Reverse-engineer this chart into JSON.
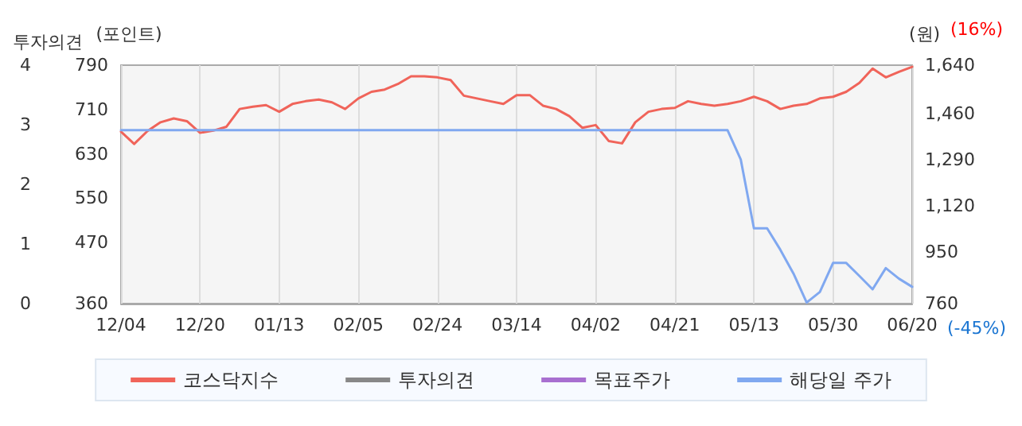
{
  "chart_data": {
    "type": "line",
    "categories": [
      "12/04",
      null,
      null,
      null,
      null,
      null,
      "12/20",
      null,
      null,
      null,
      null,
      null,
      "01/13",
      null,
      null,
      null,
      null,
      null,
      "02/05",
      null,
      null,
      null,
      null,
      null,
      "02/24",
      null,
      null,
      null,
      null,
      null,
      "03/14",
      null,
      null,
      null,
      null,
      null,
      "04/02",
      null,
      null,
      null,
      null,
      null,
      "04/21",
      null,
      null,
      null,
      null,
      null,
      "05/13",
      null,
      null,
      null,
      null,
      null,
      "05/30",
      null,
      null,
      null,
      null,
      null,
      "06/20"
    ],
    "series": [
      {
        "name": "코스닥지수",
        "color": "#f0645a",
        "axis": "y",
        "values": [
          670,
          648,
          671,
          687,
          694,
          689,
          668,
          672,
          679,
          711,
          715,
          718,
          706,
          720,
          725,
          728,
          723,
          711,
          730,
          742,
          746,
          756,
          770,
          770,
          768,
          763,
          735,
          730,
          725,
          720,
          736,
          736,
          717,
          711,
          698,
          677,
          682,
          653,
          649,
          687,
          706,
          711,
          713,
          725,
          720,
          717,
          720,
          725,
          733,
          725,
          711,
          717,
          720,
          730,
          733,
          742,
          758,
          784,
          768,
          778,
          787
        ]
      },
      {
        "name": "투자의견",
        "color": "#888888",
        "axis": "y3",
        "values": [
          null,
          null,
          null,
          null,
          null,
          null,
          null,
          null,
          null,
          null,
          null,
          null,
          null,
          null,
          null,
          null,
          null,
          null,
          null,
          null,
          null,
          null,
          null,
          null,
          null,
          null,
          null,
          null,
          null,
          null,
          null,
          null,
          null,
          null,
          null,
          null,
          null,
          null,
          null,
          null,
          null,
          null,
          null,
          null,
          null,
          null,
          null,
          null,
          null,
          null,
          null,
          null,
          null,
          null,
          null,
          null,
          null,
          null,
          null,
          null,
          null
        ]
      },
      {
        "name": "목표주가",
        "color": "#a86fd0",
        "axis": "y2",
        "values": [
          null,
          null,
          null,
          null,
          null,
          null,
          null,
          null,
          null,
          null,
          null,
          null,
          null,
          null,
          null,
          null,
          null,
          null,
          null,
          null,
          null,
          null,
          null,
          null,
          null,
          null,
          null,
          null,
          null,
          null,
          null,
          null,
          null,
          null,
          null,
          null,
          null,
          null,
          null,
          null,
          null,
          null,
          null,
          null,
          null,
          null,
          null,
          null,
          null,
          null,
          null,
          null,
          null,
          null,
          null,
          null,
          null,
          null,
          null,
          null,
          null
        ]
      },
      {
        "name": "해당일 주가",
        "color": "#80a8f0",
        "axis": "y2",
        "values": [
          1400,
          1400,
          1400,
          1400,
          1400,
          1400,
          1400,
          1400,
          1400,
          1400,
          1400,
          1400,
          1400,
          1400,
          1400,
          1400,
          1400,
          1400,
          1400,
          1400,
          1400,
          1400,
          1400,
          1400,
          1400,
          1400,
          1400,
          1400,
          1400,
          1400,
          1400,
          1400,
          1400,
          1400,
          1400,
          1400,
          1400,
          1400,
          1400,
          1400,
          1400,
          1400,
          1400,
          1400,
          1400,
          1400,
          1400,
          1292,
          1038,
          1038,
          959,
          871,
          764,
          803,
          910,
          910,
          862,
          813,
          891,
          852,
          822
        ]
      }
    ],
    "ylabel": "(포인트)",
    "y2label": "(원)",
    "y3label": "투자의견",
    "ylim": [
      360,
      790
    ],
    "yticks": [
      790,
      710,
      630,
      550,
      470,
      360
    ],
    "y2lim": [
      760,
      1640
    ],
    "y2ticks": [
      {
        "value": 1640,
        "label": "1,640"
      },
      {
        "value": 1460,
        "label": "1,460"
      },
      {
        "value": 1290,
        "label": "1,290"
      },
      {
        "value": 1120,
        "label": "1,120"
      },
      950,
      760
    ],
    "y3lim": [
      0,
      4
    ],
    "y3ticks": [
      0,
      1,
      2,
      3,
      4
    ],
    "annotations": [
      "(16%)",
      "(-45%)"
    ],
    "grid": "x",
    "legend": "bottom",
    "marker": "none",
    "line_style": "solid"
  }
}
